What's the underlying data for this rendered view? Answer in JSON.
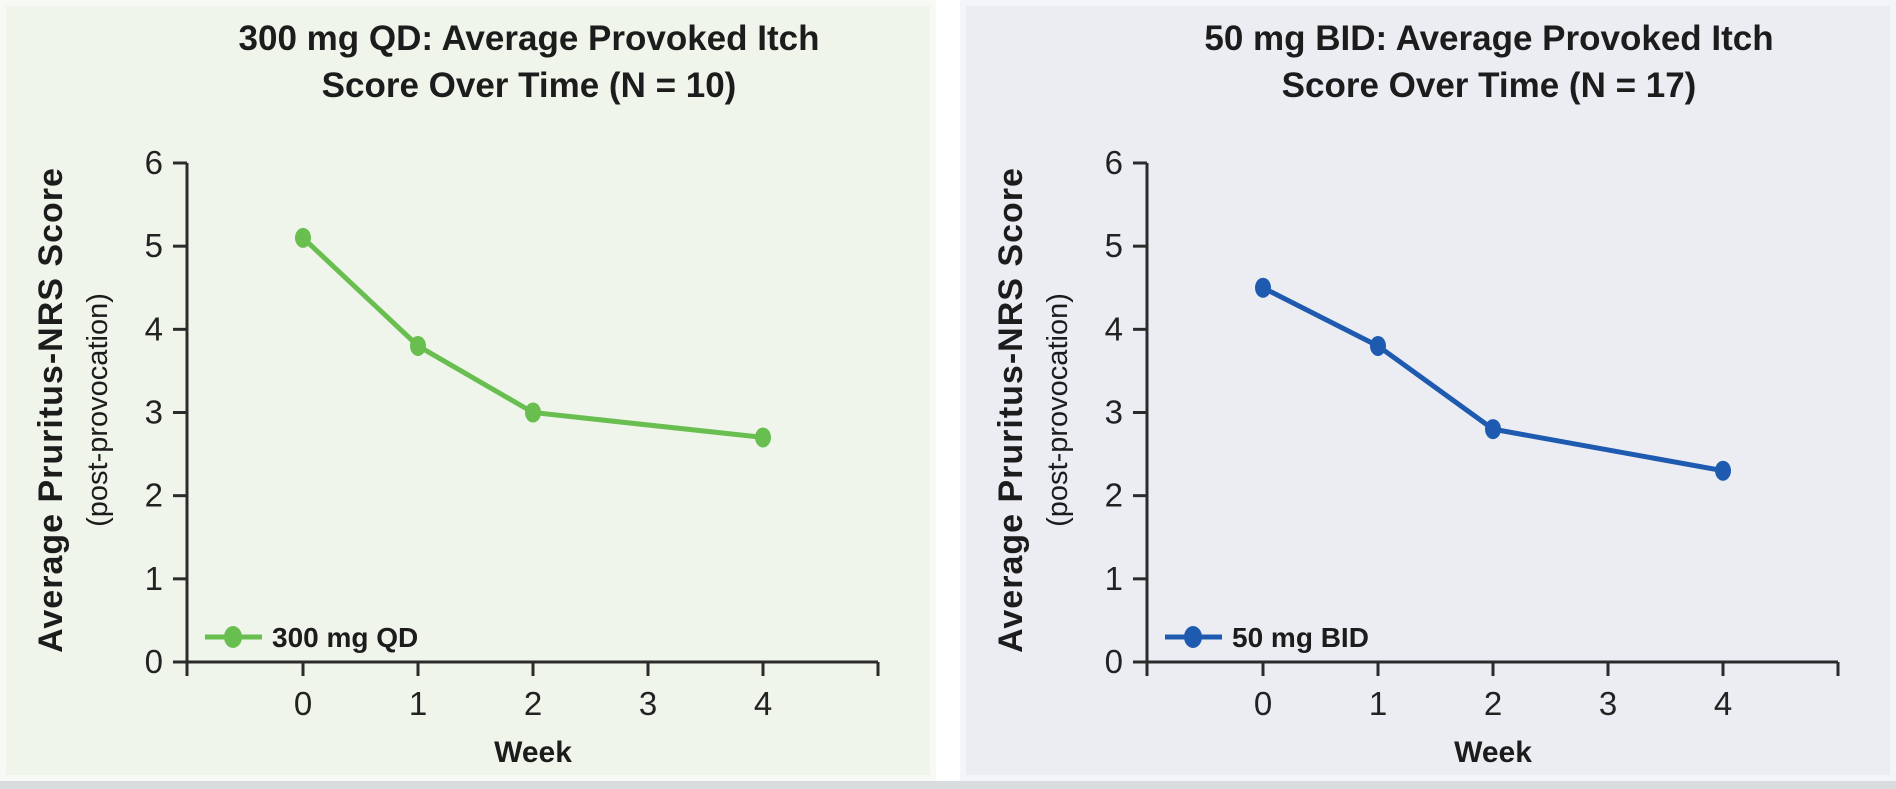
{
  "chart_data": [
    {
      "type": "line",
      "title": "300 mg QD: Average Provoked Itch Score Over Time (N = 10)",
      "title_lines": [
        "300 mg QD: Average Provoked Itch",
        "Score Over Time (N = 10)"
      ],
      "xlabel": "Week",
      "ylabel": "Average Pruritus-NRS Score",
      "ylabel_sub": "(post-provocation)",
      "legend": "300 mg QD",
      "legend_position": "lower left",
      "x": [
        0,
        1,
        2,
        4
      ],
      "values": [
        5.1,
        3.8,
        3.0,
        2.7
      ],
      "xticks": [
        0,
        1,
        2,
        3,
        4
      ],
      "yticks": [
        0,
        1,
        2,
        3,
        4,
        5,
        6
      ],
      "xlim": [
        -1,
        5
      ],
      "ylim": [
        0,
        6
      ],
      "grid": false,
      "line_color": "#69be50",
      "panel_bg": "#eff5eb"
    },
    {
      "type": "line",
      "title": "50 mg BID: Average Provoked Itch Score Over Time (N = 17)",
      "title_lines": [
        "50 mg BID: Average Provoked Itch",
        "Score Over Time (N = 17)"
      ],
      "xlabel": "Week",
      "ylabel": "Average Pruritus-NRS Score",
      "ylabel_sub": "(post-provocation)",
      "legend": "50 mg BID",
      "legend_position": "lower left",
      "x": [
        0,
        1,
        2,
        4
      ],
      "values": [
        4.5,
        3.8,
        2.8,
        2.3
      ],
      "xticks": [
        0,
        1,
        2,
        3,
        4
      ],
      "yticks": [
        0,
        1,
        2,
        3,
        4,
        5,
        6
      ],
      "xlim": [
        -1,
        5
      ],
      "ylim": [
        0,
        6
      ],
      "grid": false,
      "line_color": "#1e5aaf",
      "panel_bg": "#ebedf3"
    }
  ]
}
